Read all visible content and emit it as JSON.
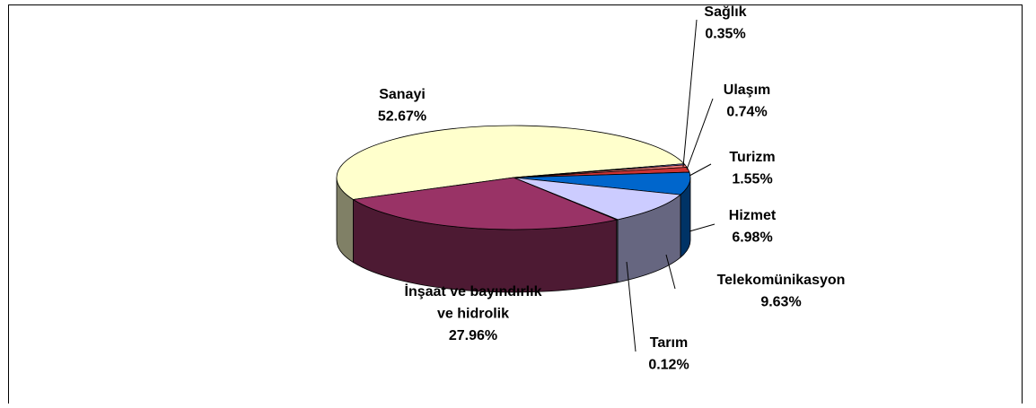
{
  "chart_data": {
    "type": "pie",
    "categories": [
      "Sanayi",
      "Sağlık",
      "Ulaşım",
      "Turizm",
      "Hizmet",
      "Telekomünikasyon",
      "Tarım",
      "İnşaat ve bayındırlık\nve hidrolik"
    ],
    "values": [
      52.67,
      0.35,
      0.74,
      1.55,
      6.98,
      9.63,
      0.12,
      27.96
    ],
    "value_labels": [
      "52.67%",
      "0.35%",
      "0.74%",
      "1.55%",
      "6.98%",
      "9.63%",
      "0.12%",
      "27.96%"
    ],
    "colors": [
      "#ffffcc",
      "#9999ff",
      "#ff8080",
      "#cc3333",
      "#0066cc",
      "#ccccff",
      "#ccffff",
      "#993366"
    ]
  }
}
